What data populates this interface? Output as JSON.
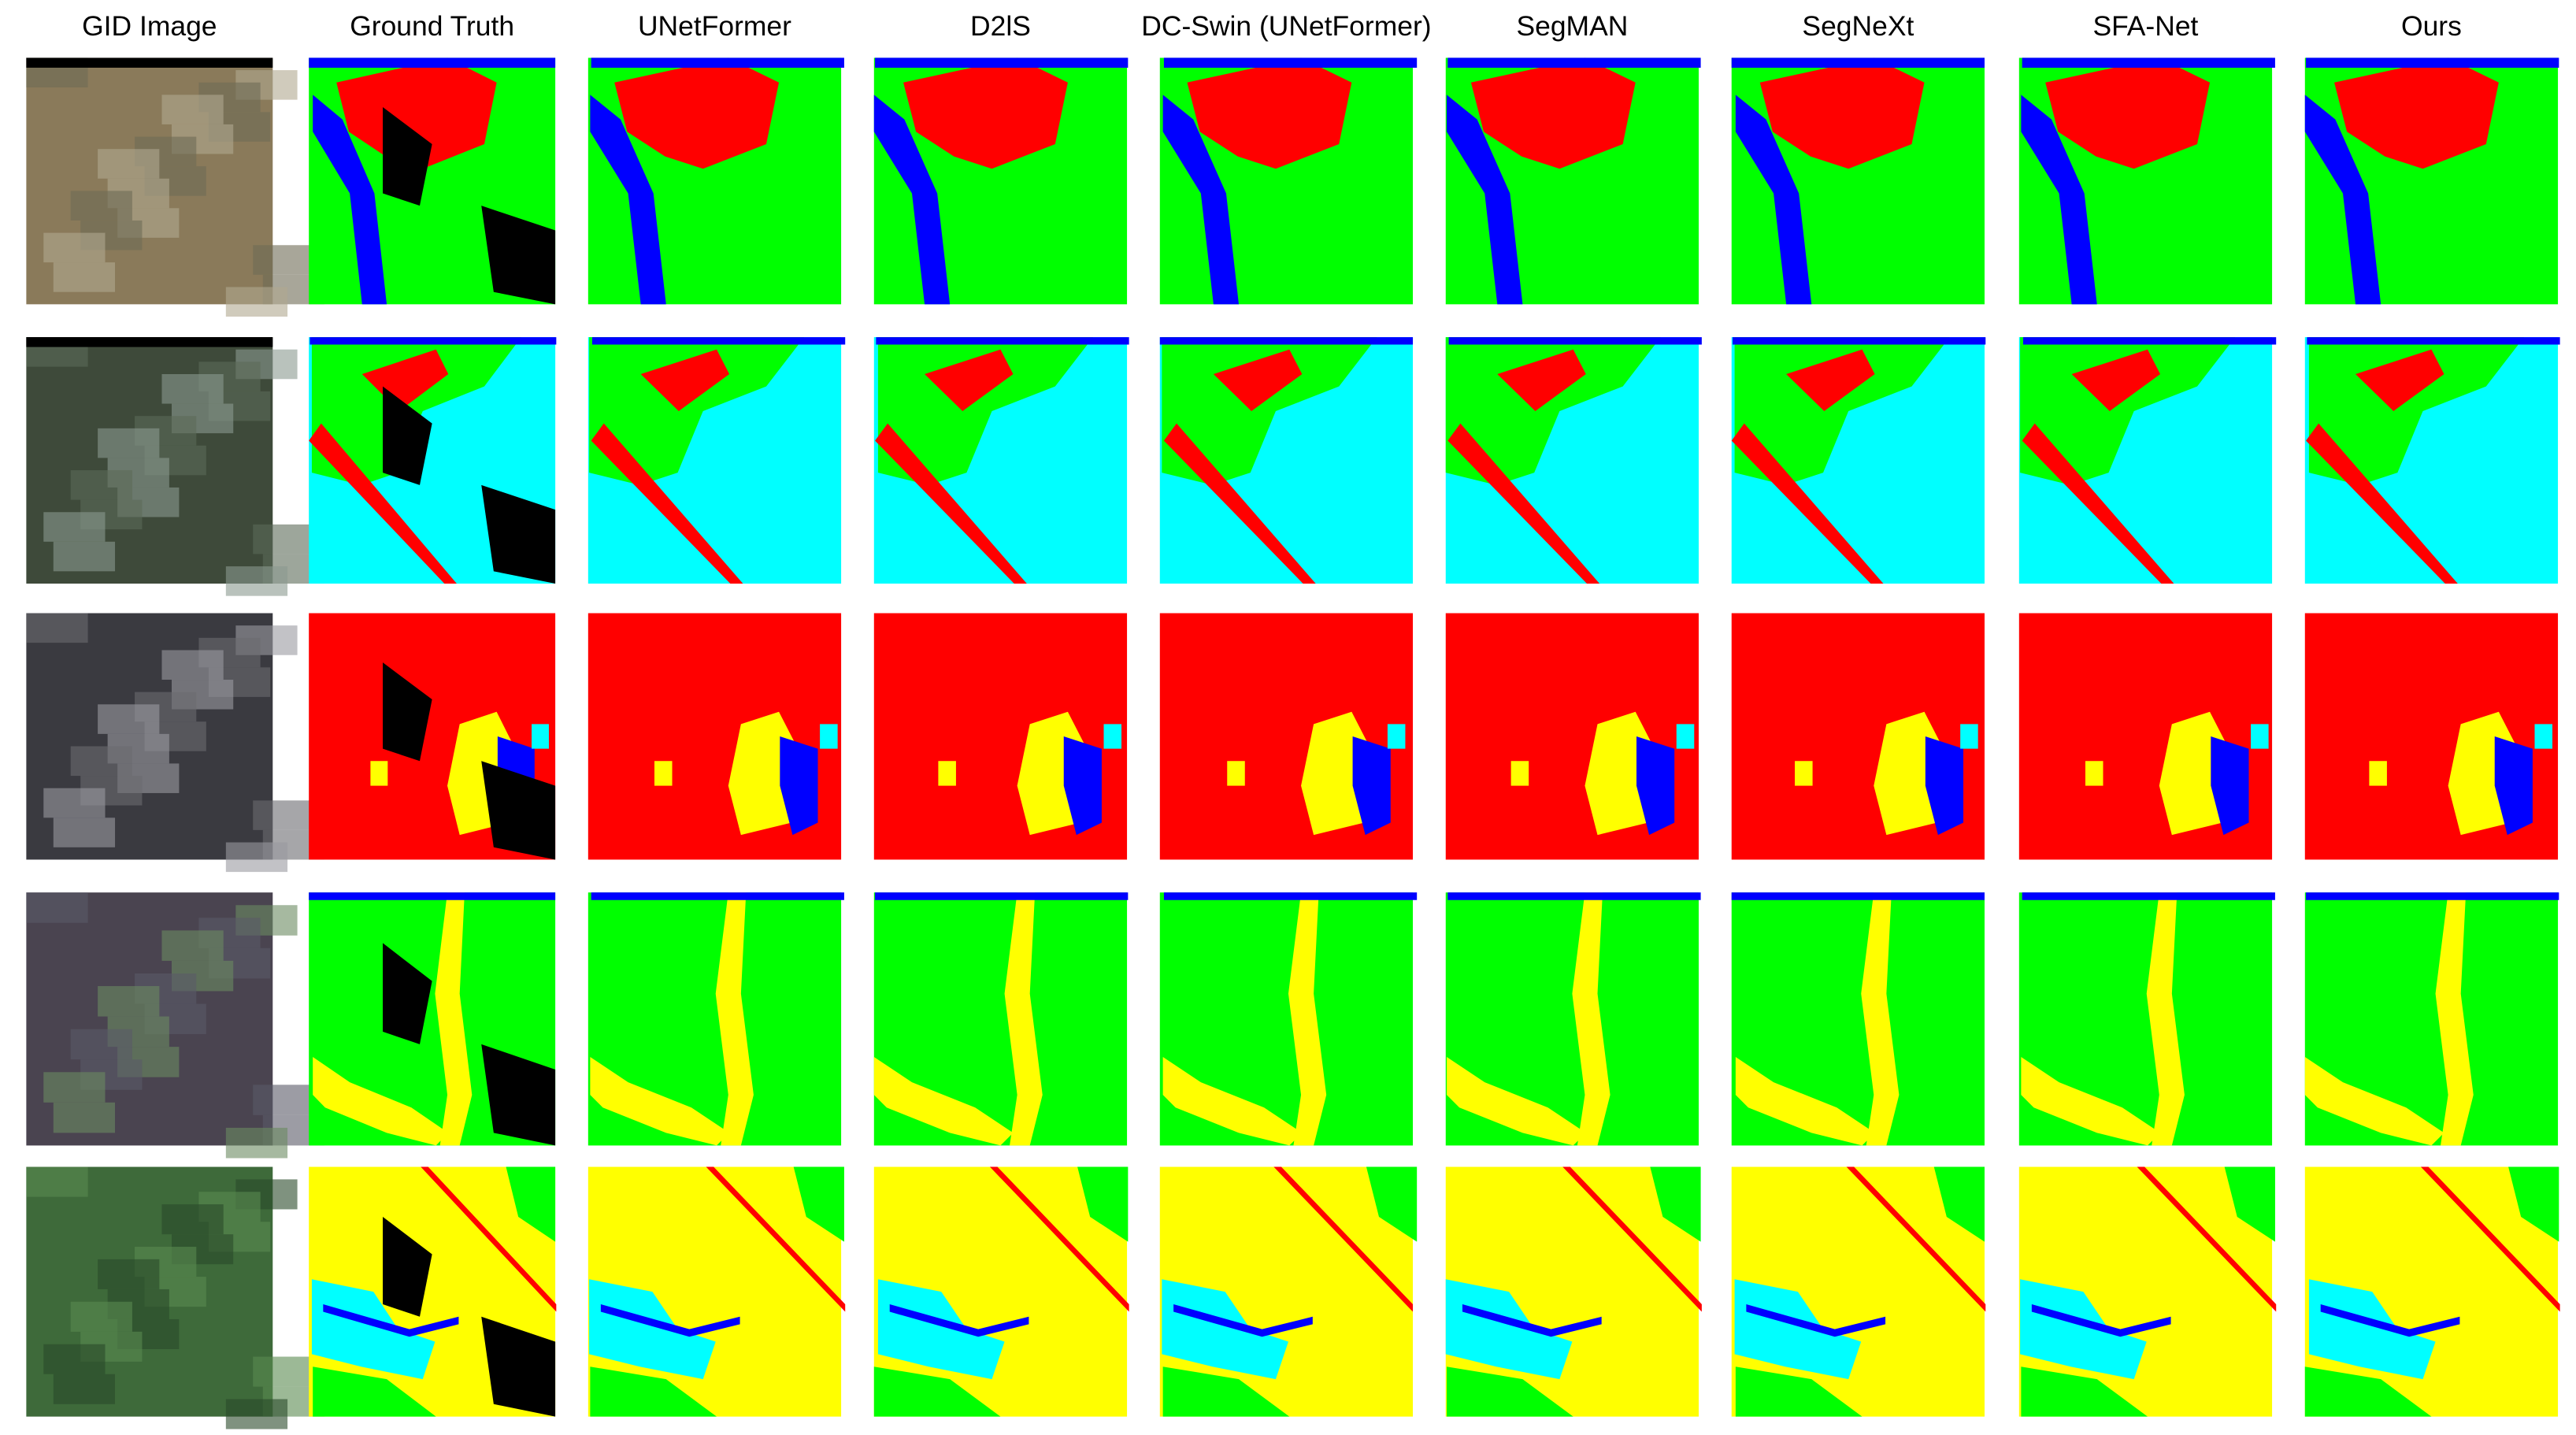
{
  "headers": [
    "GID Image",
    "Ground Truth",
    "UNetFormer",
    "D2lS",
    "DC-Swin (UNetFormer)",
    "SegMAN",
    "SegNeXt",
    "SFA-Net",
    "Ours"
  ]
}
